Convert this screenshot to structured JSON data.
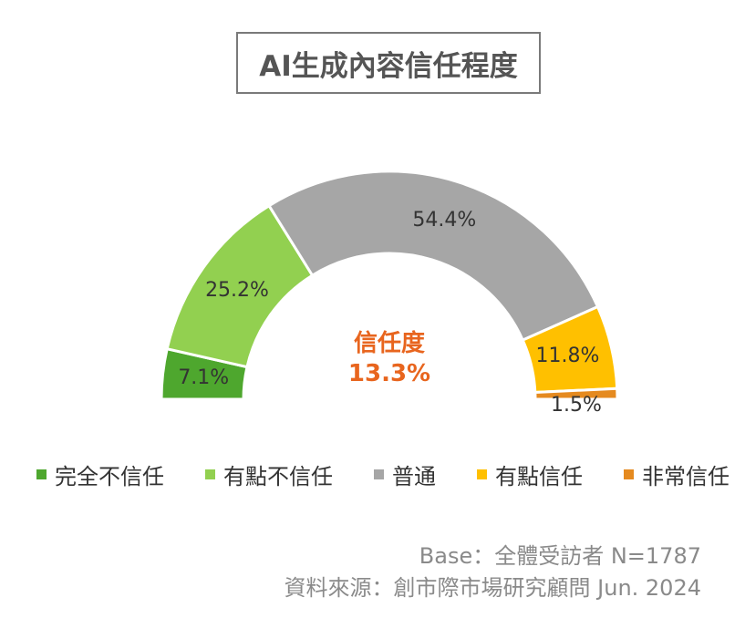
{
  "chart_data": {
    "type": "pie",
    "subtype": "semi-donut",
    "title": "AI生成內容信任程度",
    "categories": [
      "完全不信任",
      "有點不信任",
      "普通",
      "有點信任",
      "非常信任"
    ],
    "values": [
      7.1,
      25.2,
      54.4,
      11.8,
      1.5
    ],
    "labels": [
      "7.1%",
      "25.2%",
      "54.4%",
      "11.8%",
      "1.5%"
    ],
    "colors": [
      "#4ea72e",
      "#92d050",
      "#a6a6a6",
      "#ffc000",
      "#e58a1f"
    ],
    "center": {
      "label": "信任度",
      "value": "13.3%"
    },
    "legend_position": "bottom"
  },
  "footer": {
    "base": "Base：全體受訪者 N=1787",
    "source": "資料來源：創市際市場研究顧問 Jun. 2024"
  }
}
